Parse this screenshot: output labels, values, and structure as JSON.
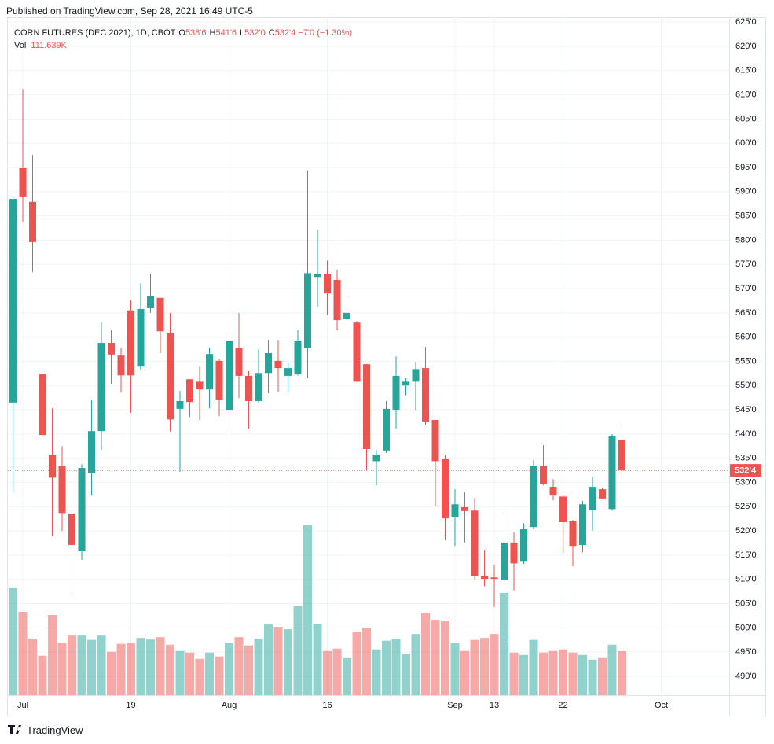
{
  "published": "Published on TradingView.com, Sep 28, 2021 16:49 UTC-5",
  "brand": "TradingView",
  "chart_data": {
    "type": "candlestick",
    "title": "CORN FUTURES (DEC 2021), 1D, CBOT",
    "legend": [
      {
        "key": "O",
        "value": "538'6"
      },
      {
        "key": "H",
        "value": "541'6"
      },
      {
        "key": "L",
        "value": "532'0"
      },
      {
        "key": "C",
        "value": "532'4"
      }
    ],
    "change": "−7'0 (−1.30%)",
    "volume_name": "Vol",
    "volume_label": "111.639K",
    "last_price_label": "532'4",
    "up_color": "#26a69a",
    "down_color": "#ef5350",
    "grid": true,
    "categories": [
      null,
      "Jul",
      null,
      null,
      null,
      null,
      null,
      null,
      null,
      null,
      null,
      null,
      "19",
      null,
      null,
      null,
      null,
      null,
      null,
      null,
      null,
      null,
      "Aug",
      null,
      null,
      null,
      null,
      null,
      null,
      null,
      null,
      null,
      "16",
      null,
      null,
      null,
      null,
      null,
      null,
      null,
      null,
      null,
      null,
      null,
      null,
      "Sep",
      null,
      null,
      null,
      "13",
      null,
      null,
      null,
      null,
      null,
      null,
      "22",
      null,
      null,
      null,
      null,
      null,
      null,
      null,
      null,
      null,
      "Oct"
    ],
    "open": [
      546.5,
      595,
      587.9,
      552.3,
      535.7,
      533.5,
      523.6,
      515.8,
      531.9,
      540.6,
      558.8,
      556.2,
      565.5,
      553.9,
      566.1,
      568.1,
      560.9,
      545.2,
      551.3,
      550.8,
      549.2,
      555.1,
      545,
      557.7,
      552,
      546.8,
      552.6,
      555.1,
      552,
      552.3,
      557.7,
      572.4,
      573.1,
      571.8,
      563.7,
      563,
      554.4,
      534.4,
      536.6,
      545,
      550,
      550.8,
      553.6,
      542.9,
      534.8,
      522.8,
      524.9,
      524.2,
      510.7,
      510.4,
      509.9,
      517.6,
      513.8,
      520.8,
      533.5,
      529.1,
      527.1,
      522,
      517.1,
      524.4,
      528.6,
      524.5,
      538.75,
      null,
      null,
      null,
      null
    ],
    "high": [
      589,
      611.2,
      597.6,
      552.3,
      545.3,
      537.5,
      524,
      533.8,
      547,
      563,
      561.4,
      557.8,
      567.6,
      571.1,
      573.1,
      568.1,
      565,
      548.9,
      551.3,
      553.9,
      557.8,
      555.4,
      559.6,
      565,
      553,
      557.5,
      559.4,
      559.4,
      554.7,
      561.4,
      594.4,
      582.2,
      575.8,
      573.9,
      568.4,
      563.3,
      554.4,
      536.7,
      546.8,
      556,
      551.6,
      554.9,
      558,
      542.9,
      535.6,
      528.6,
      528,
      526.8,
      516.1,
      513,
      523.9,
      519.7,
      521.6,
      534.6,
      537.7,
      530.7,
      527.3,
      522.3,
      526.2,
      531.2,
      528.9,
      540,
      541.75,
      null,
      null,
      null,
      null
    ],
    "low": [
      528,
      583.8,
      573.4,
      539.8,
      518.9,
      520,
      507,
      514,
      527.3,
      536.7,
      550.4,
      548.6,
      544.4,
      553.3,
      565,
      556.7,
      540.5,
      532.2,
      543.5,
      542.9,
      545.3,
      543.7,
      540.6,
      547.4,
      541.1,
      546.5,
      548.4,
      548.7,
      548.7,
      552.1,
      551.5,
      566.3,
      564.6,
      561.4,
      561.4,
      550.8,
      532.5,
      529.4,
      536.1,
      541.1,
      548,
      545,
      541.9,
      525.2,
      518.2,
      516.9,
      517.6,
      510,
      508.6,
      504.3,
      497.3,
      507.7,
      513.2,
      520.5,
      529.4,
      526.3,
      515.5,
      512.7,
      515.6,
      520,
      526.7,
      524.2,
      532,
      null,
      null,
      null,
      null
    ],
    "close": [
      588.5,
      589,
      579.6,
      539.8,
      531,
      523.7,
      517.1,
      533,
      540.6,
      558.8,
      556.4,
      552.1,
      552.1,
      565.8,
      568.5,
      561.2,
      543,
      546.8,
      546.6,
      549.2,
      556.5,
      547.1,
      559.3,
      552,
      546.8,
      552.6,
      556.7,
      553.6,
      553.6,
      559.3,
      573.2,
      573.1,
      569,
      563.5,
      565,
      550.8,
      536.9,
      535.6,
      545.2,
      552,
      550.8,
      553.4,
      542.6,
      534.4,
      522.6,
      525.5,
      524.1,
      510.7,
      510.1,
      510.1,
      517.6,
      513.3,
      520.5,
      533.5,
      529.6,
      527.3,
      521.8,
      516.9,
      525.5,
      529.1,
      526.7,
      539.5,
      532.5,
      null,
      null,
      null,
      null
    ],
    "volume": [
      271000,
      211000,
      143000,
      100000,
      203000,
      132000,
      151000,
      151000,
      140000,
      151000,
      110000,
      130000,
      132000,
      145000,
      141000,
      147000,
      128000,
      112000,
      108000,
      92000,
      108000,
      98000,
      132000,
      147000,
      126000,
      143000,
      179000,
      173000,
      167000,
      227000,
      430000,
      181000,
      112000,
      118000,
      94000,
      161000,
      171000,
      116000,
      138000,
      143000,
      104000,
      155000,
      207000,
      191000,
      187000,
      132000,
      112000,
      140000,
      145000,
      155000,
      259000,
      108000,
      102000,
      140000,
      108000,
      112000,
      116000,
      108000,
      102000,
      90000,
      94000,
      128000,
      111639,
      null,
      null,
      null,
      null
    ],
    "ylim": [
      486.1,
      626
    ],
    "yticks": [
      {
        "value": 490,
        "label": "490'0"
      },
      {
        "value": 495,
        "label": "495'0"
      },
      {
        "value": 500,
        "label": "500'0"
      },
      {
        "value": 505,
        "label": "505'0"
      },
      {
        "value": 510,
        "label": "510'0"
      },
      {
        "value": 515,
        "label": "515'0"
      },
      {
        "value": 520,
        "label": "520'0"
      },
      {
        "value": 525,
        "label": "525'0"
      },
      {
        "value": 530,
        "label": "530'0"
      },
      {
        "value": 535,
        "label": "535'0"
      },
      {
        "value": 540,
        "label": "540'0"
      },
      {
        "value": 545,
        "label": "545'0"
      },
      {
        "value": 550,
        "label": "550'0"
      },
      {
        "value": 555,
        "label": "555'0"
      },
      {
        "value": 560,
        "label": "560'0"
      },
      {
        "value": 565,
        "label": "565'0"
      },
      {
        "value": 570,
        "label": "570'0"
      },
      {
        "value": 575,
        "label": "575'0"
      },
      {
        "value": 580,
        "label": "580'0"
      },
      {
        "value": 585,
        "label": "585'0"
      },
      {
        "value": 590,
        "label": "590'0"
      },
      {
        "value": 595,
        "label": "595'0"
      },
      {
        "value": 600,
        "label": "600'0"
      },
      {
        "value": 605,
        "label": "605'0"
      },
      {
        "value": 610,
        "label": "610'0"
      },
      {
        "value": 615,
        "label": "615'0"
      },
      {
        "value": 620,
        "label": "620'0"
      },
      {
        "value": 625,
        "label": "625'0"
      }
    ]
  }
}
